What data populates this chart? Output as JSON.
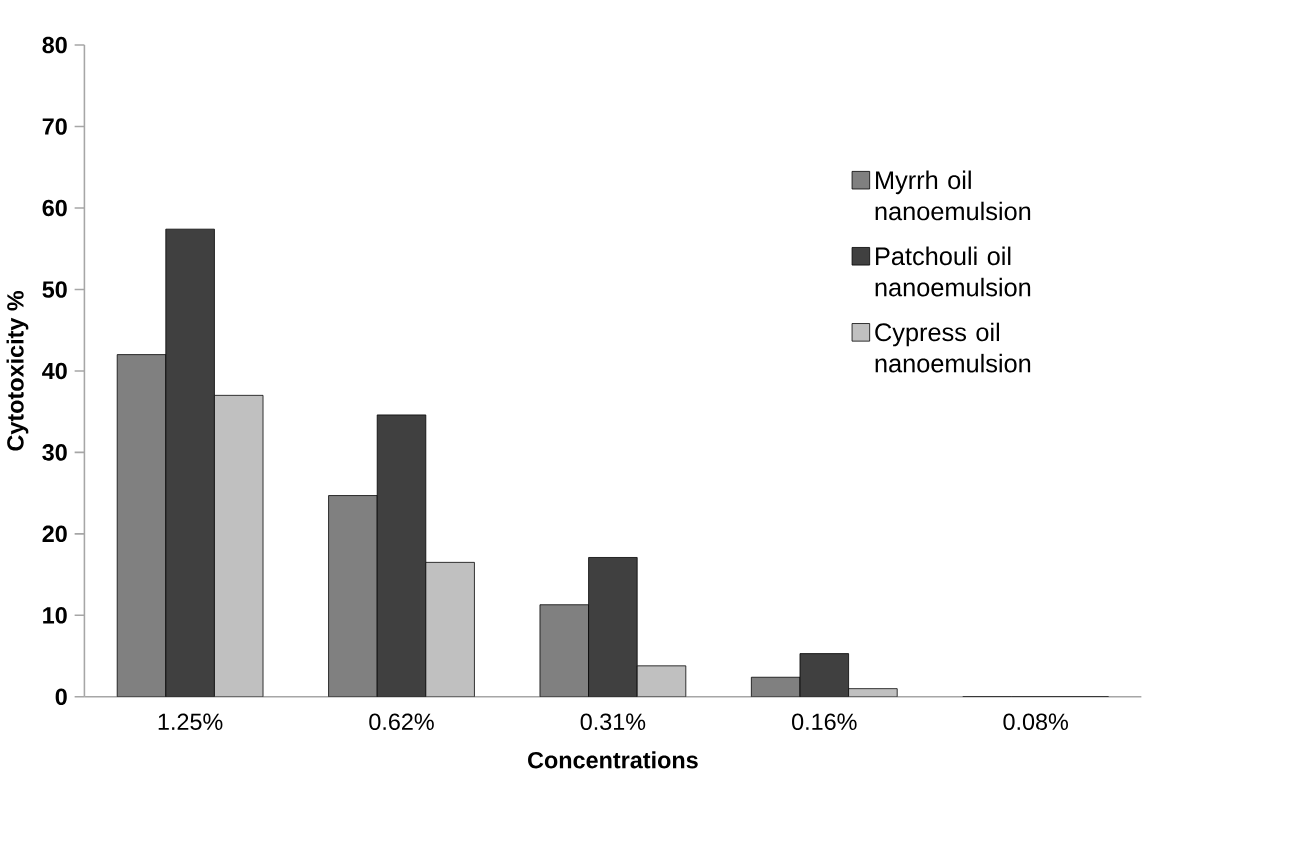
{
  "chart_data": {
    "type": "bar",
    "xlabel": "Concentrations",
    "ylabel": "Cytotoxicity %",
    "categories": [
      "1.25%",
      "0.62%",
      "0.31%",
      "0.16%",
      "0.08%"
    ],
    "series": [
      {
        "name": "Myrrh oil nanoemulsion",
        "color": "#808080",
        "values": [
          42.0,
          24.7,
          11.3,
          2.4,
          0
        ]
      },
      {
        "name": "Patchouli oil nanoemulsion",
        "color": "#404040",
        "values": [
          57.4,
          34.6,
          17.1,
          5.3,
          0
        ]
      },
      {
        "name": "Cypress oil nanoemulsion",
        "color": "#c0c0c0",
        "values": [
          37.0,
          16.5,
          3.8,
          1.0,
          0
        ]
      }
    ],
    "ylim": [
      0,
      80
    ],
    "yticks": [
      0,
      10,
      20,
      30,
      40,
      50,
      60,
      70,
      80
    ],
    "grid": false,
    "legend": "right"
  }
}
